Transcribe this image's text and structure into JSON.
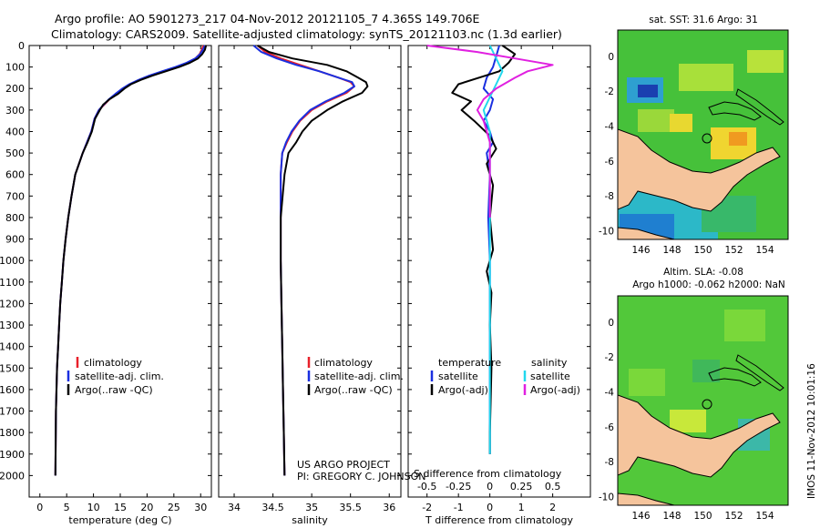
{
  "header": {
    "title_line1": "Argo profile: AO 5901273_217 04-Nov-2012 20121105_7 4.365S 149.706E",
    "title_line2": "Climatology: CARS2009. Satellite-adjusted climatology: synTS_20121103.nc (1.3d earlier)"
  },
  "credit": {
    "line1": "US ARGO PROJECT",
    "line2": "PI: GREGORY C. JOHNSON"
  },
  "side_stamp": "IMOS 11-Nov-2012 10:01:16",
  "colors": {
    "clim": "#e8202a",
    "sat": "#1a2fe0",
    "argo": "#000000",
    "sat_s": "#22d8ee",
    "argo_s": "#e020e0",
    "land": "#f5c49c",
    "ocean_green": "#4cc63a"
  },
  "chart_data": [
    {
      "id": "temperature-panel",
      "type": "line",
      "xlabel": "temperature (deg C)",
      "ylabel": "",
      "xlim": [
        -2,
        32
      ],
      "ylim": [
        2100,
        0
      ],
      "xticks": [
        0,
        5,
        10,
        15,
        20,
        25,
        30
      ],
      "yticks": [
        0,
        100,
        200,
        300,
        400,
        500,
        600,
        700,
        800,
        900,
        1000,
        1100,
        1200,
        1300,
        1400,
        1500,
        1600,
        1700,
        1800,
        1900,
        2000
      ],
      "legend": [
        "climatology",
        "satellite-adj. clim.",
        "Argo(..raw -QC)"
      ],
      "series": [
        {
          "name": "climatology",
          "color": "#e8202a",
          "x": [
            30.5,
            30.2,
            29.8,
            29.0,
            27.5,
            25.5,
            23.0,
            20.5,
            18.5,
            16.8,
            15.5,
            14.2,
            13.0,
            12.0,
            11.0,
            10.2,
            9.6,
            8.8,
            8.0,
            7.3,
            6.6,
            5.9,
            5.3,
            4.8,
            4.4,
            4.1,
            3.8,
            3.6,
            3.4,
            3.2,
            3.1,
            3.0,
            2.95,
            2.9
          ],
          "y": [
            0,
            20,
            40,
            60,
            80,
            100,
            120,
            140,
            160,
            180,
            200,
            225,
            250,
            275,
            300,
            340,
            400,
            450,
            500,
            550,
            600,
            700,
            800,
            900,
            1000,
            1100,
            1200,
            1300,
            1400,
            1500,
            1600,
            1700,
            1850,
            2000
          ]
        },
        {
          "name": "satellite-adj. clim.",
          "color": "#1a2fe0",
          "x": [
            30.8,
            30.4,
            29.9,
            29.0,
            27.4,
            25.3,
            22.8,
            20.4,
            18.4,
            16.7,
            15.4,
            14.1,
            12.9,
            11.9,
            11.0,
            10.2,
            9.6,
            8.8,
            8.0,
            7.3,
            6.6,
            5.9,
            5.3,
            4.8,
            4.4,
            4.1,
            3.8,
            3.6,
            3.4,
            3.2,
            3.1,
            3.0,
            2.95,
            2.9
          ],
          "y": [
            0,
            20,
            40,
            60,
            80,
            100,
            120,
            140,
            160,
            180,
            200,
            225,
            250,
            275,
            300,
            340,
            400,
            450,
            500,
            550,
            600,
            700,
            800,
            900,
            1000,
            1100,
            1200,
            1300,
            1400,
            1500,
            1600,
            1700,
            1850,
            2000
          ]
        },
        {
          "name": "Argo(..raw -QC)",
          "color": "#000000",
          "x": [
            31.0,
            30.8,
            30.3,
            29.5,
            28.0,
            26.0,
            23.5,
            21.0,
            18.8,
            17.0,
            15.8,
            14.6,
            13.0,
            11.8,
            11.2,
            10.3,
            9.7,
            8.9,
            8.0,
            7.3,
            6.6,
            5.9,
            5.3,
            4.8,
            4.4,
            4.1,
            3.8,
            3.6,
            3.4,
            3.2,
            3.1,
            3.0,
            2.95,
            2.9
          ],
          "y": [
            0,
            20,
            40,
            60,
            80,
            100,
            120,
            140,
            160,
            180,
            200,
            225,
            250,
            275,
            300,
            340,
            400,
            450,
            500,
            550,
            600,
            700,
            800,
            900,
            1000,
            1100,
            1200,
            1300,
            1400,
            1500,
            1600,
            1700,
            1850,
            2000
          ]
        }
      ]
    },
    {
      "id": "salinity-panel",
      "type": "line",
      "xlabel": "salinity",
      "xlim": [
        33.8,
        36.15
      ],
      "ylim": [
        2100,
        0
      ],
      "xticks": [
        34,
        34.5,
        35,
        35.5,
        36
      ],
      "xtick_labels": [
        "34",
        "34.5",
        "35",
        "35.5",
        "36"
      ],
      "legend": [
        "climatology",
        "satellite-adj. clim.",
        "Argo(..raw -QC)"
      ],
      "series": [
        {
          "name": "climatology",
          "color": "#e8202a",
          "x": [
            34.3,
            34.4,
            34.6,
            34.85,
            35.1,
            35.35,
            35.5,
            35.55,
            35.45,
            35.2,
            35.0,
            34.85,
            34.75,
            34.68,
            34.62,
            34.6,
            34.6,
            34.6,
            34.61,
            34.62,
            34.63,
            34.64,
            34.65
          ],
          "y": [
            0,
            30,
            60,
            90,
            120,
            150,
            170,
            190,
            220,
            260,
            300,
            350,
            400,
            450,
            500,
            600,
            800,
            1000,
            1200,
            1400,
            1600,
            1800,
            2000
          ]
        },
        {
          "name": "satellite-adj. clim.",
          "color": "#1a2fe0",
          "x": [
            34.25,
            34.35,
            34.55,
            34.8,
            35.1,
            35.35,
            35.52,
            35.55,
            35.42,
            35.18,
            34.98,
            34.84,
            34.74,
            34.67,
            34.62,
            34.6,
            34.6,
            34.6,
            34.61,
            34.62,
            34.63,
            34.64,
            34.65
          ],
          "y": [
            0,
            30,
            60,
            90,
            120,
            150,
            170,
            190,
            220,
            260,
            300,
            350,
            400,
            450,
            500,
            600,
            800,
            1000,
            1200,
            1400,
            1600,
            1800,
            2000
          ]
        },
        {
          "name": "Argo(..raw -QC)",
          "color": "#000000",
          "x": [
            34.3,
            34.45,
            34.75,
            35.2,
            35.45,
            35.6,
            35.7,
            35.72,
            35.65,
            35.4,
            35.2,
            35.0,
            34.88,
            34.8,
            34.7,
            34.65,
            34.6,
            34.6,
            34.61,
            34.62,
            34.63,
            34.64,
            34.65
          ],
          "y": [
            0,
            30,
            60,
            90,
            120,
            150,
            170,
            190,
            220,
            260,
            300,
            350,
            400,
            450,
            500,
            600,
            800,
            1000,
            1200,
            1400,
            1600,
            1800,
            2000
          ]
        }
      ]
    },
    {
      "id": "difference-panel",
      "type": "line",
      "xlabel": "T difference from climatology",
      "xlabel_top": "S difference from climatology",
      "xlim": [
        -2.6,
        3.2
      ],
      "ylim": [
        2100,
        0
      ],
      "xticks": [
        -2,
        -1,
        0,
        1,
        2
      ],
      "xtick_labels": [
        "-2",
        "-1",
        "0",
        "1",
        "2"
      ],
      "s_xticks": [
        -0.5,
        -0.25,
        0,
        0.25,
        0.5
      ],
      "s_xtick_labels": [
        "-0.5",
        "-0.25",
        "0",
        "0.25",
        "0.5"
      ],
      "s_scale": 4,
      "legend_left_title": "temperature",
      "legend_right_title": "salinity",
      "legend": [
        "satellite",
        "Argo(-adj)",
        "satellite",
        "Argo(-adj)"
      ],
      "series": [
        {
          "name": "temperature satellite",
          "color": "#1a2fe0",
          "x": [
            0.3,
            0.2,
            0.1,
            -0.1,
            -0.2,
            0.1,
            0.0,
            -0.2,
            0.0,
            0.1,
            -0.1,
            0.0,
            -0.05,
            0.0,
            0.0,
            0.0
          ],
          "y": [
            0,
            50,
            100,
            150,
            200,
            250,
            300,
            350,
            400,
            450,
            500,
            600,
            800,
            1000,
            1500,
            1900
          ]
        },
        {
          "name": "temperature Argo(-adj)",
          "color": "#000000",
          "x": [
            0.4,
            0.8,
            0.6,
            0.3,
            -1.0,
            -1.2,
            -0.6,
            -0.9,
            -0.5,
            0.0,
            0.2,
            -0.1,
            0.1,
            0.0,
            0.1,
            -0.1,
            0.05,
            0.0,
            0.05,
            0.0,
            0.0
          ],
          "y": [
            0,
            40,
            80,
            120,
            180,
            220,
            260,
            300,
            350,
            420,
            480,
            550,
            650,
            800,
            950,
            1050,
            1150,
            1300,
            1500,
            1800,
            1900
          ]
        },
        {
          "name": "salinity satellite",
          "color": "#22d8ee",
          "x": [
            0.0,
            0.05,
            0.1,
            0.05,
            0.0,
            -0.05,
            0.0,
            0.0,
            0.0,
            0.0
          ],
          "y": [
            0,
            60,
            120,
            180,
            240,
            300,
            400,
            600,
            1200,
            1900
          ]
        },
        {
          "name": "salinity Argo(-adj)",
          "color": "#e020e0",
          "x": [
            -0.5,
            -0.1,
            0.2,
            0.5,
            0.3,
            0.2,
            0.05,
            -0.05,
            -0.1,
            -0.05,
            0.0,
            0.0,
            0.0
          ],
          "y": [
            0,
            30,
            60,
            90,
            120,
            150,
            200,
            250,
            300,
            350,
            450,
            600,
            800
          ]
        }
      ]
    },
    {
      "id": "map-sst",
      "type": "heatmap",
      "title": "sat. SST: 31.6  Argo: 31",
      "xticks": [
        146,
        148,
        150,
        152,
        154
      ],
      "yticks": [
        0,
        -2,
        -4,
        -6,
        -8,
        -10
      ],
      "xlim": [
        144.5,
        155.5
      ],
      "ylim": [
        -10.5,
        1.5
      ],
      "marker": {
        "lon": 149.706,
        "lat": -4.365
      }
    },
    {
      "id": "map-sla",
      "type": "heatmap",
      "title": "Altim. SLA: -0.08",
      "subtitle": "Argo h1000: -0.062  h2000: NaN",
      "xticks": [
        146,
        148,
        150,
        152,
        154
      ],
      "yticks": [
        0,
        -2,
        -4,
        -6,
        -8,
        -10
      ],
      "xlim": [
        144.5,
        155.5
      ],
      "ylim": [
        -10.5,
        1.5
      ],
      "marker": {
        "lon": 149.706,
        "lat": -4.365
      }
    }
  ]
}
